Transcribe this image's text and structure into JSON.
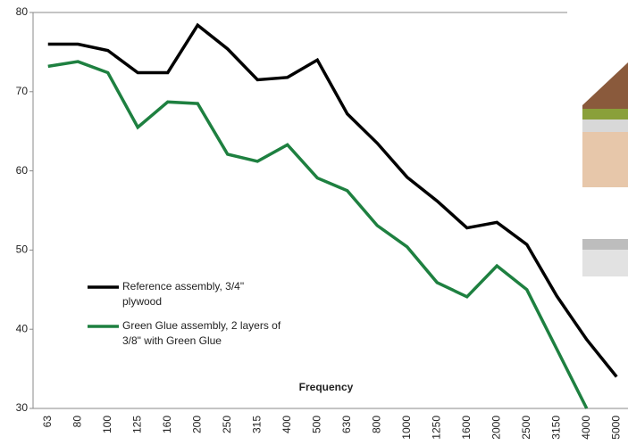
{
  "chart_data": {
    "type": "line",
    "x_label": "Frequency",
    "categories": [
      "63",
      "80",
      "100",
      "125",
      "160",
      "200",
      "250",
      "315",
      "400",
      "500",
      "630",
      "800",
      "1000",
      "1250",
      "1600",
      "2000",
      "2500",
      "3150",
      "4000",
      "5000"
    ],
    "series": [
      {
        "name": "Reference assembly, 3/4\" plywood",
        "color": "#000000",
        "values": [
          76,
          76,
          75.2,
          72.4,
          72.4,
          78.4,
          75.4,
          71.5,
          71.8,
          74,
          67.2,
          63.5,
          59.2,
          56.2,
          52.8,
          53.5,
          50.7,
          44.2,
          38.7,
          34
        ]
      },
      {
        "name": "Green Glue assembly, 2 layers of 3/8\" with Green Glue",
        "color": "#1e8040",
        "values": [
          73.2,
          73.8,
          72.4,
          65.5,
          68.7,
          68.5,
          62.1,
          61.2,
          63.3,
          59.1,
          57.5,
          53.1,
          50.4,
          45.9,
          44.1,
          48,
          45,
          37.5,
          30,
          null
        ]
      }
    ],
    "ylim": [
      30,
      80
    ],
    "yticks": [
      30,
      40,
      50,
      60,
      70,
      80
    ],
    "grid": false
  }
}
